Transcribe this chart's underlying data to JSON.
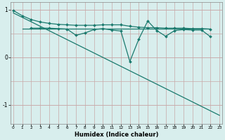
{
  "xlabel": "Humidex (Indice chaleur)",
  "background_color": "#d8eeed",
  "grid_color": "#c8a8a8",
  "line_color": "#1a7a6e",
  "ylim": [
    -1.4,
    1.15
  ],
  "xlim": [
    -0.3,
    23.3
  ],
  "yticks": [
    -1,
    0,
    1
  ],
  "xticks": [
    0,
    1,
    2,
    3,
    4,
    5,
    6,
    7,
    8,
    9,
    10,
    11,
    12,
    13,
    14,
    15,
    16,
    17,
    18,
    19,
    20,
    21,
    22,
    23
  ],
  "line1_x": [
    0,
    1,
    2,
    3,
    4,
    5,
    6,
    7,
    8,
    9,
    10,
    11,
    12,
    13,
    14,
    15,
    16,
    17,
    18,
    19,
    20,
    21,
    22
  ],
  "line1_y": [
    0.98,
    0.87,
    0.79,
    0.74,
    0.71,
    0.69,
    0.68,
    0.67,
    0.67,
    0.67,
    0.68,
    0.68,
    0.68,
    0.65,
    0.63,
    0.62,
    0.62,
    0.61,
    0.61,
    0.61,
    0.6,
    0.6,
    0.59
  ],
  "line2_x": [
    2,
    3,
    4,
    5,
    6,
    7,
    8,
    9,
    10,
    11,
    12,
    13,
    14,
    15,
    16,
    17,
    18,
    19,
    20,
    21,
    22
  ],
  "line2_y": [
    0.61,
    0.61,
    0.61,
    0.6,
    0.59,
    0.46,
    0.51,
    0.58,
    0.6,
    0.57,
    0.55,
    -0.09,
    0.38,
    0.76,
    0.56,
    0.44,
    0.56,
    0.58,
    0.57,
    0.57,
    0.43
  ],
  "line3_x": [
    0,
    23
  ],
  "line3_y": [
    0.93,
    -1.22
  ],
  "flat_line_x": [
    1,
    22
  ],
  "flat_line_y": [
    0.595,
    0.595
  ]
}
